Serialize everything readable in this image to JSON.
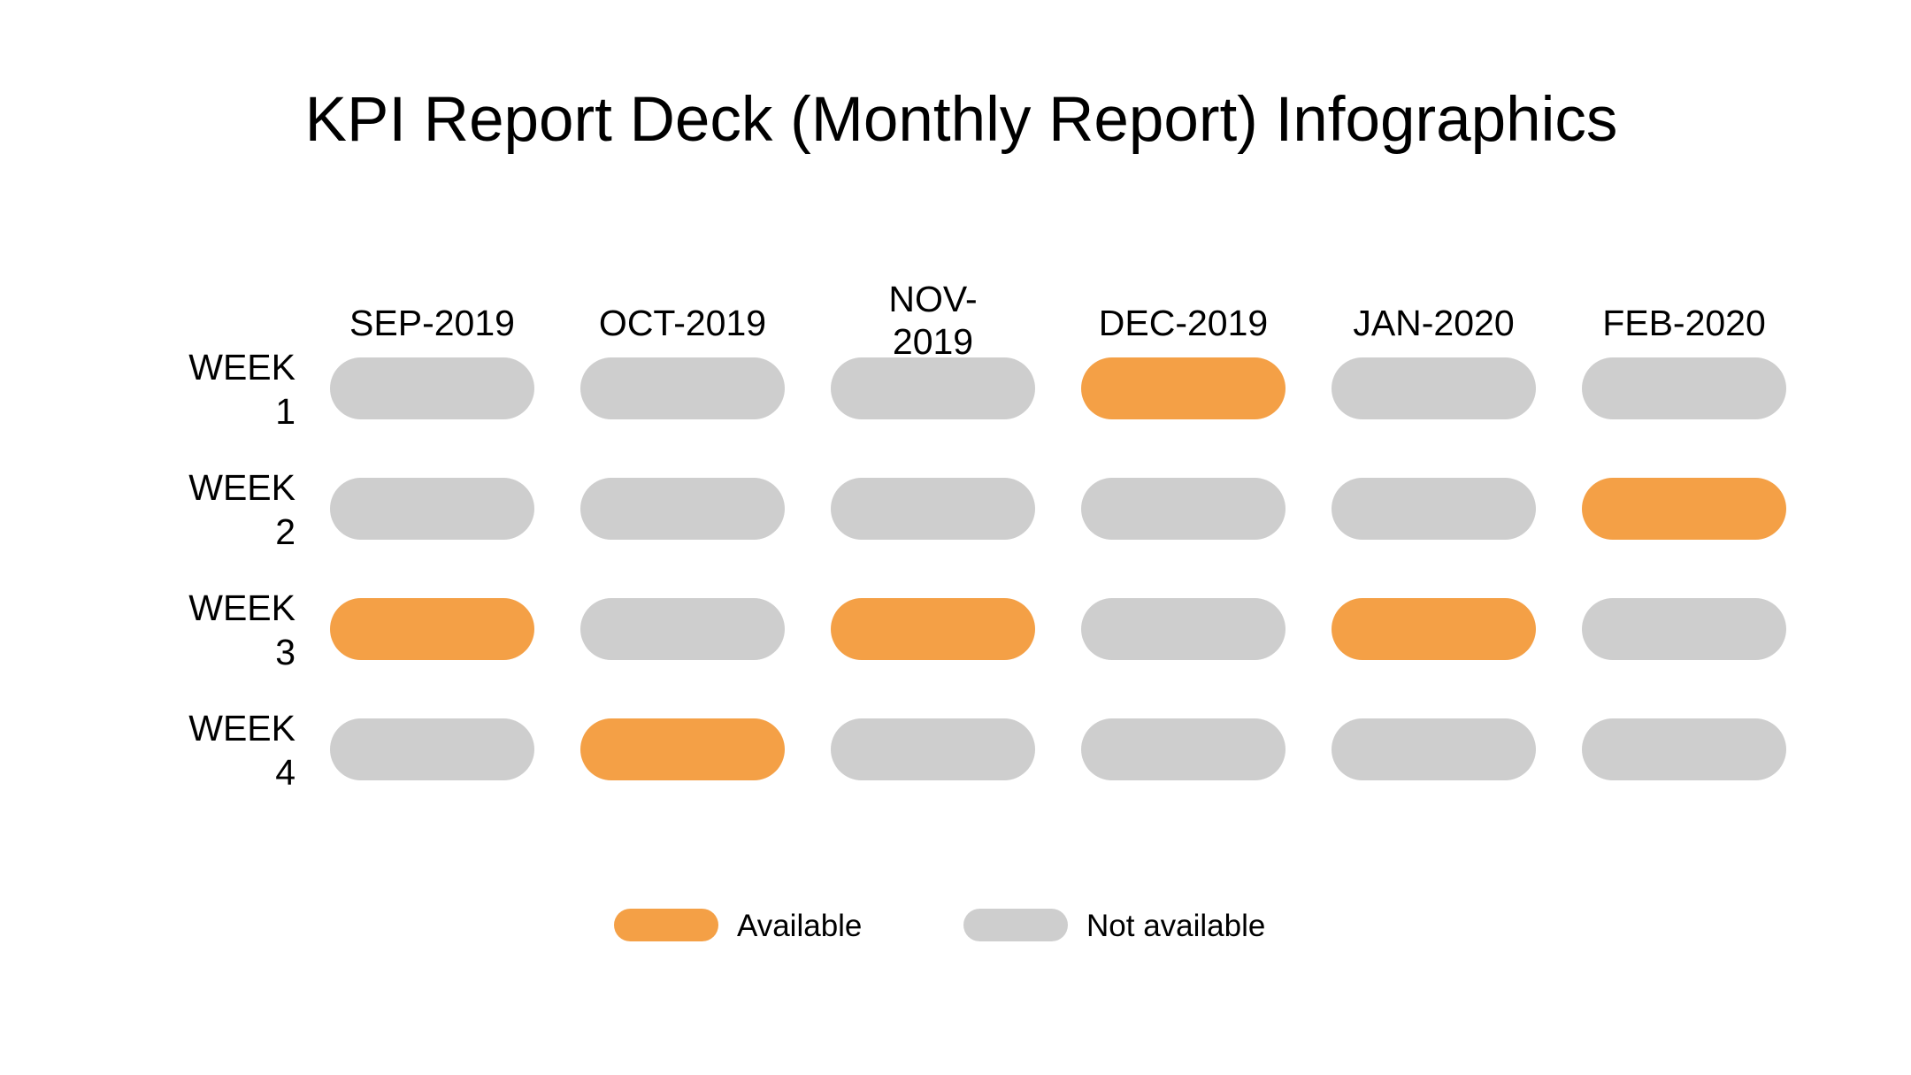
{
  "title": "KPI Report Deck (Monthly Report) Infographics",
  "colors": {
    "available": "#F4A046",
    "not_available": "#CECECE"
  },
  "chart_data": {
    "type": "table",
    "title": "KPI Report Deck (Monthly Report) Infographics",
    "columns": [
      "SEP-2019",
      "OCT-2019",
      "NOV-2019",
      "DEC-2019",
      "JAN-2020",
      "FEB-2020"
    ],
    "column_label_lines": [
      [
        "SEP-2019"
      ],
      [
        "OCT-2019"
      ],
      [
        "NOV-",
        "2019"
      ],
      [
        "DEC-2019"
      ],
      [
        "JAN-2020"
      ],
      [
        "FEB-2020"
      ]
    ],
    "rows": [
      "WEEK 1",
      "WEEK 2",
      "WEEK 3",
      "WEEK 4"
    ],
    "row_label_lines": [
      [
        "WEEK",
        "1"
      ],
      [
        "WEEK",
        "2"
      ],
      [
        "WEEK",
        "3"
      ],
      [
        "WEEK",
        "4"
      ]
    ],
    "cell_legend": {
      "1": "Available",
      "0": "Not available"
    },
    "values": [
      [
        0,
        0,
        0,
        1,
        0,
        0
      ],
      [
        0,
        0,
        0,
        0,
        0,
        1
      ],
      [
        1,
        0,
        1,
        0,
        1,
        0
      ],
      [
        0,
        1,
        0,
        0,
        0,
        0
      ]
    ],
    "legend": [
      {
        "key": "available",
        "label": "Available"
      },
      {
        "key": "not_available",
        "label": "Not available"
      }
    ]
  }
}
